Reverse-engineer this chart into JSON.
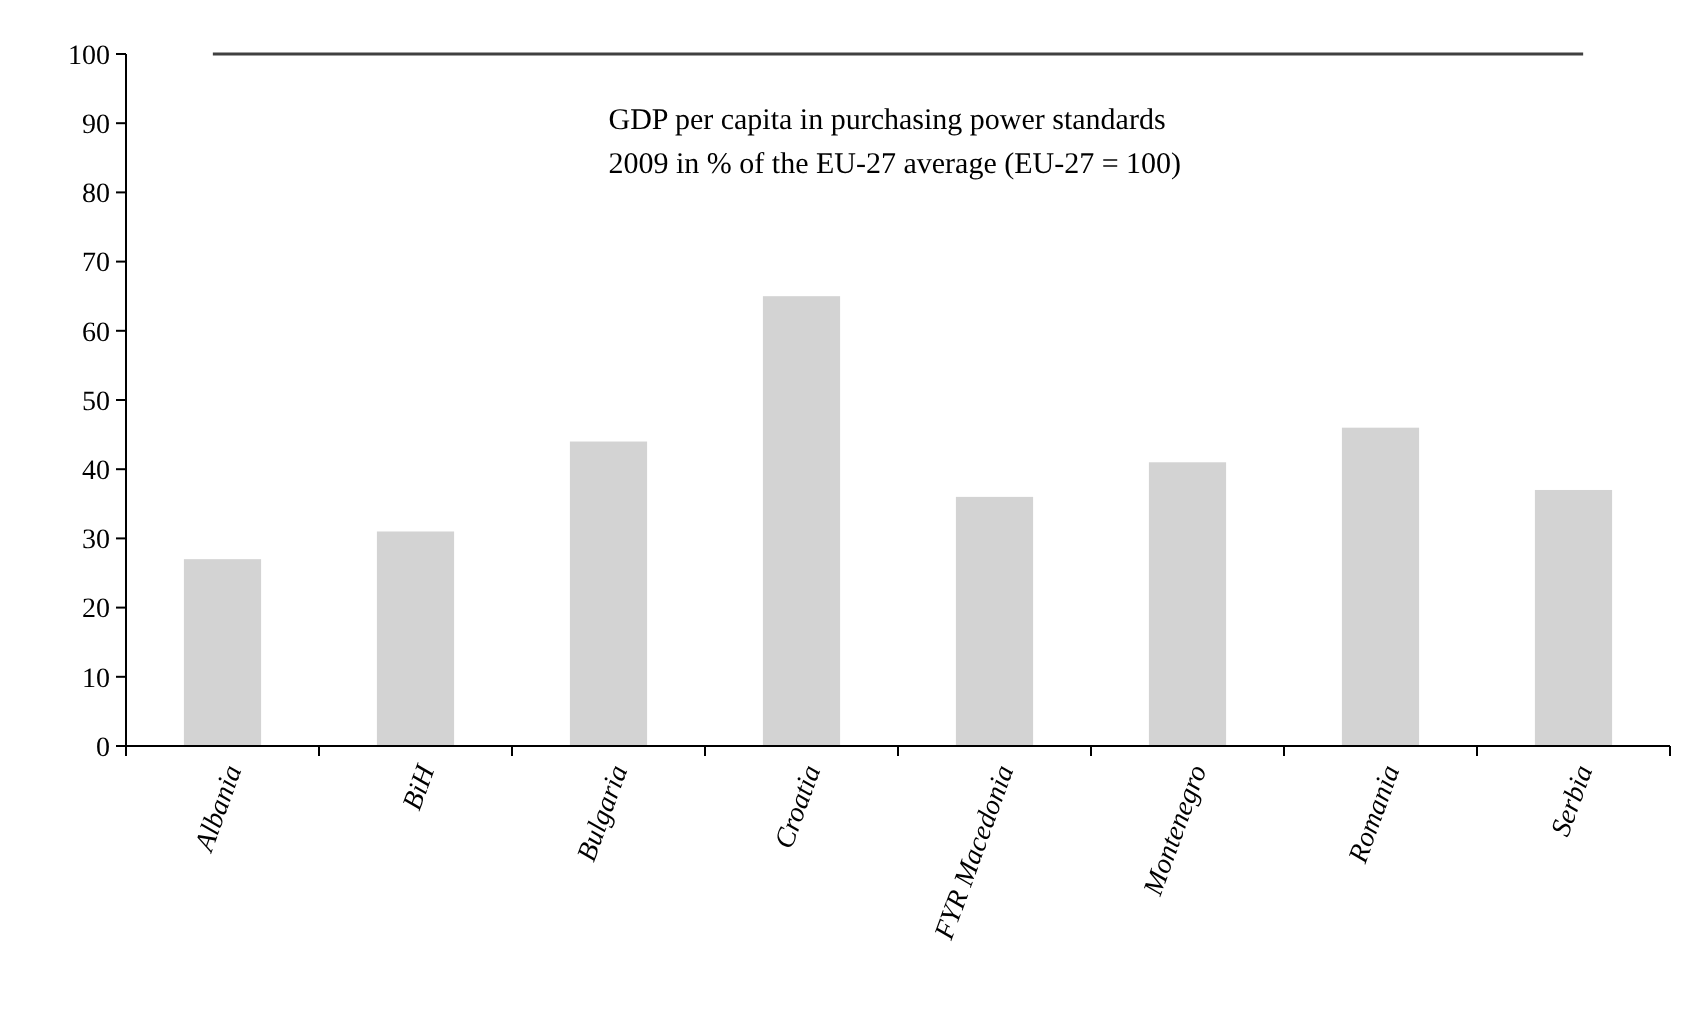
{
  "chart_data": {
    "type": "bar",
    "title": "GDP per capita in purchasing power standards",
    "subtitle": "2009 in % of the EU-27 average (EU-27 = 100)",
    "categories": [
      "Albania",
      "BiH",
      "Bulgaria",
      "Croatia",
      "FYR Macedonia",
      "Montenegro",
      "Romania",
      "Serbia"
    ],
    "values": [
      27,
      31,
      44,
      65,
      36,
      41,
      46,
      37
    ],
    "color": "#d3d3d3",
    "ylim": [
      0,
      100
    ],
    "yticks": [
      0,
      10,
      20,
      30,
      40,
      50,
      60,
      70,
      80,
      90,
      100
    ],
    "grid": false,
    "ref_lines": [
      {
        "axis": "y",
        "value": 100,
        "color": "#404040"
      }
    ]
  }
}
